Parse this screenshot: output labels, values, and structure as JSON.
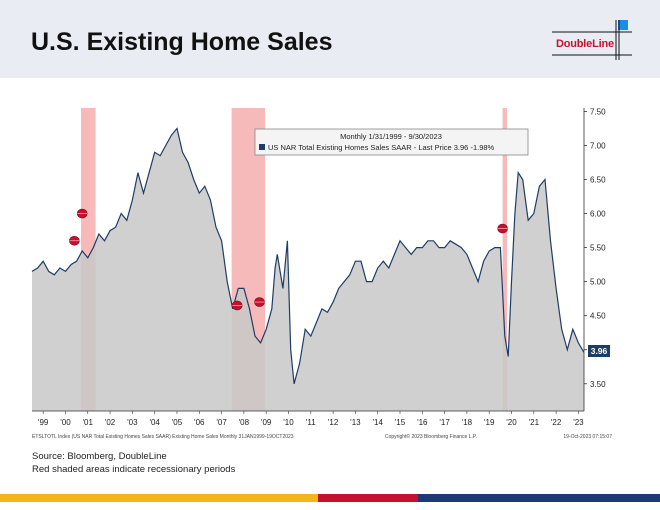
{
  "header": {
    "title": "U.S. Existing Home Sales",
    "logo_text": "DoubleLine"
  },
  "footer": {
    "source": "Source: Bloomberg, DoubleLine",
    "note": "Red shaded areas indicate recessionary periods"
  },
  "colors": {
    "header_bg": "#e9ecf2",
    "area_fill": "#c8c8c8",
    "line": "#1f3c66",
    "recession": "#f4a3a3",
    "brand_red": "#c8102e",
    "brand_yellow": "#f2b51c",
    "brand_navy": "#1e3a72",
    "logo_blue": "#1a8ee0"
  },
  "chart_data": {
    "type": "area",
    "legend_box": {
      "line1": "Monthly 1/31/1999 - 9/30/2023",
      "line2": "US NAR Total Existing Homes Sales SAAR - Last Price 3.96  -1.98%"
    },
    "footer_left": "ETSLTOTL Index (US NAR Total Existing Homes Sales SAAR) Existing Home Sales   Monthly 31JAN1999-19OCT2023",
    "footer_mid": "Copyright© 2023 Bloomberg Finance L.P.",
    "footer_right": "19-Oct-2023 07:15:07",
    "last_value_label": "3.96",
    "y_axis": {
      "min": 3.1,
      "max": 7.55,
      "ticks": [
        "3.50",
        "4.00",
        "4.50",
        "5.00",
        "5.50",
        "6.00",
        "6.50",
        "7.00",
        "7.50"
      ],
      "position": "right"
    },
    "x_axis": {
      "min": 1999.0,
      "max": 2023.75,
      "ticks": [
        {
          "label": "'99",
          "x": 1999.5
        },
        {
          "label": "'00",
          "x": 2000.5
        },
        {
          "label": "'01",
          "x": 2001.5
        },
        {
          "label": "'02",
          "x": 2002.5
        },
        {
          "label": "'03",
          "x": 2003.5
        },
        {
          "label": "'04",
          "x": 2004.5
        },
        {
          "label": "'05",
          "x": 2005.5
        },
        {
          "label": "'06",
          "x": 2006.5
        },
        {
          "label": "'07",
          "x": 2007.5
        },
        {
          "label": "'08",
          "x": 2008.5
        },
        {
          "label": "'09",
          "x": 2009.5
        },
        {
          "label": "'10",
          "x": 2010.5
        },
        {
          "label": "'11",
          "x": 2011.5
        },
        {
          "label": "'12",
          "x": 2012.5
        },
        {
          "label": "'13",
          "x": 2013.5
        },
        {
          "label": "'14",
          "x": 2014.5
        },
        {
          "label": "'15",
          "x": 2015.5
        },
        {
          "label": "'16",
          "x": 2016.5
        },
        {
          "label": "'17",
          "x": 2017.5
        },
        {
          "label": "'18",
          "x": 2018.5
        },
        {
          "label": "'19",
          "x": 2019.5
        },
        {
          "label": "'20",
          "x": 2020.5
        },
        {
          "label": "'21",
          "x": 2021.5
        },
        {
          "label": "'22",
          "x": 2022.5
        },
        {
          "label": "'23",
          "x": 2023.5
        }
      ]
    },
    "recessions": [
      {
        "start": 2001.2,
        "end": 2001.85
      },
      {
        "start": 2007.95,
        "end": 2009.45
      },
      {
        "start": 2020.1,
        "end": 2020.3
      }
    ],
    "markers": [
      {
        "x": 2000.9,
        "y": 5.6
      },
      {
        "x": 2001.25,
        "y": 6.0
      },
      {
        "x": 2008.2,
        "y": 4.65
      },
      {
        "x": 2009.2,
        "y": 4.7
      },
      {
        "x": 2020.1,
        "y": 5.78
      }
    ],
    "series": [
      {
        "x": [
          1999.0,
          1999.25,
          1999.5,
          1999.75,
          2000.0,
          2000.25,
          2000.5,
          2000.75,
          2001.0,
          2001.25,
          2001.5,
          2001.75,
          2002.0,
          2002.25,
          2002.5,
          2002.75,
          2003.0,
          2003.25,
          2003.5,
          2003.75,
          2004.0,
          2004.25,
          2004.5,
          2004.75,
          2005.0,
          2005.25,
          2005.5,
          2005.75,
          2006.0,
          2006.25,
          2006.5,
          2006.75,
          2007.0,
          2007.25,
          2007.5,
          2007.75,
          2008.0,
          2008.25,
          2008.5,
          2008.75,
          2009.0,
          2009.25,
          2009.5,
          2009.75,
          2009.9,
          2010.0,
          2010.25,
          2010.45,
          2010.6,
          2010.75,
          2011.0,
          2011.25,
          2011.5,
          2011.75,
          2012.0,
          2012.25,
          2012.5,
          2012.75,
          2013.0,
          2013.25,
          2013.5,
          2013.75,
          2014.0,
          2014.25,
          2014.5,
          2014.75,
          2015.0,
          2015.25,
          2015.5,
          2015.75,
          2016.0,
          2016.25,
          2016.5,
          2016.75,
          2017.0,
          2017.25,
          2017.5,
          2017.75,
          2018.0,
          2018.25,
          2018.5,
          2018.75,
          2019.0,
          2019.25,
          2019.5,
          2019.75,
          2020.0,
          2020.2,
          2020.35,
          2020.5,
          2020.65,
          2020.8,
          2021.0,
          2021.25,
          2021.5,
          2021.75,
          2022.0,
          2022.25,
          2022.5,
          2022.75,
          2023.0,
          2023.25,
          2023.5,
          2023.75
        ],
        "y": [
          5.15,
          5.2,
          5.3,
          5.15,
          5.1,
          5.2,
          5.15,
          5.25,
          5.3,
          5.45,
          5.35,
          5.5,
          5.7,
          5.6,
          5.75,
          5.8,
          6.0,
          5.9,
          6.2,
          6.6,
          6.3,
          6.6,
          6.9,
          6.85,
          7.0,
          7.15,
          7.25,
          6.9,
          6.75,
          6.5,
          6.3,
          6.4,
          6.2,
          5.8,
          5.6,
          5.0,
          4.6,
          4.9,
          4.9,
          4.6,
          4.2,
          4.1,
          4.3,
          4.6,
          5.2,
          5.4,
          4.9,
          5.6,
          4.0,
          3.5,
          3.8,
          4.3,
          4.2,
          4.4,
          4.6,
          4.55,
          4.7,
          4.9,
          5.0,
          5.1,
          5.3,
          5.3,
          5.0,
          5.0,
          5.2,
          5.3,
          5.2,
          5.4,
          5.6,
          5.5,
          5.4,
          5.5,
          5.5,
          5.6,
          5.6,
          5.5,
          5.5,
          5.6,
          5.55,
          5.5,
          5.4,
          5.2,
          5.0,
          5.3,
          5.45,
          5.5,
          5.5,
          4.2,
          3.9,
          5.0,
          6.0,
          6.6,
          6.5,
          5.9,
          6.0,
          6.4,
          6.5,
          5.6,
          4.9,
          4.3,
          4.0,
          4.3,
          4.1,
          3.96
        ]
      }
    ]
  }
}
